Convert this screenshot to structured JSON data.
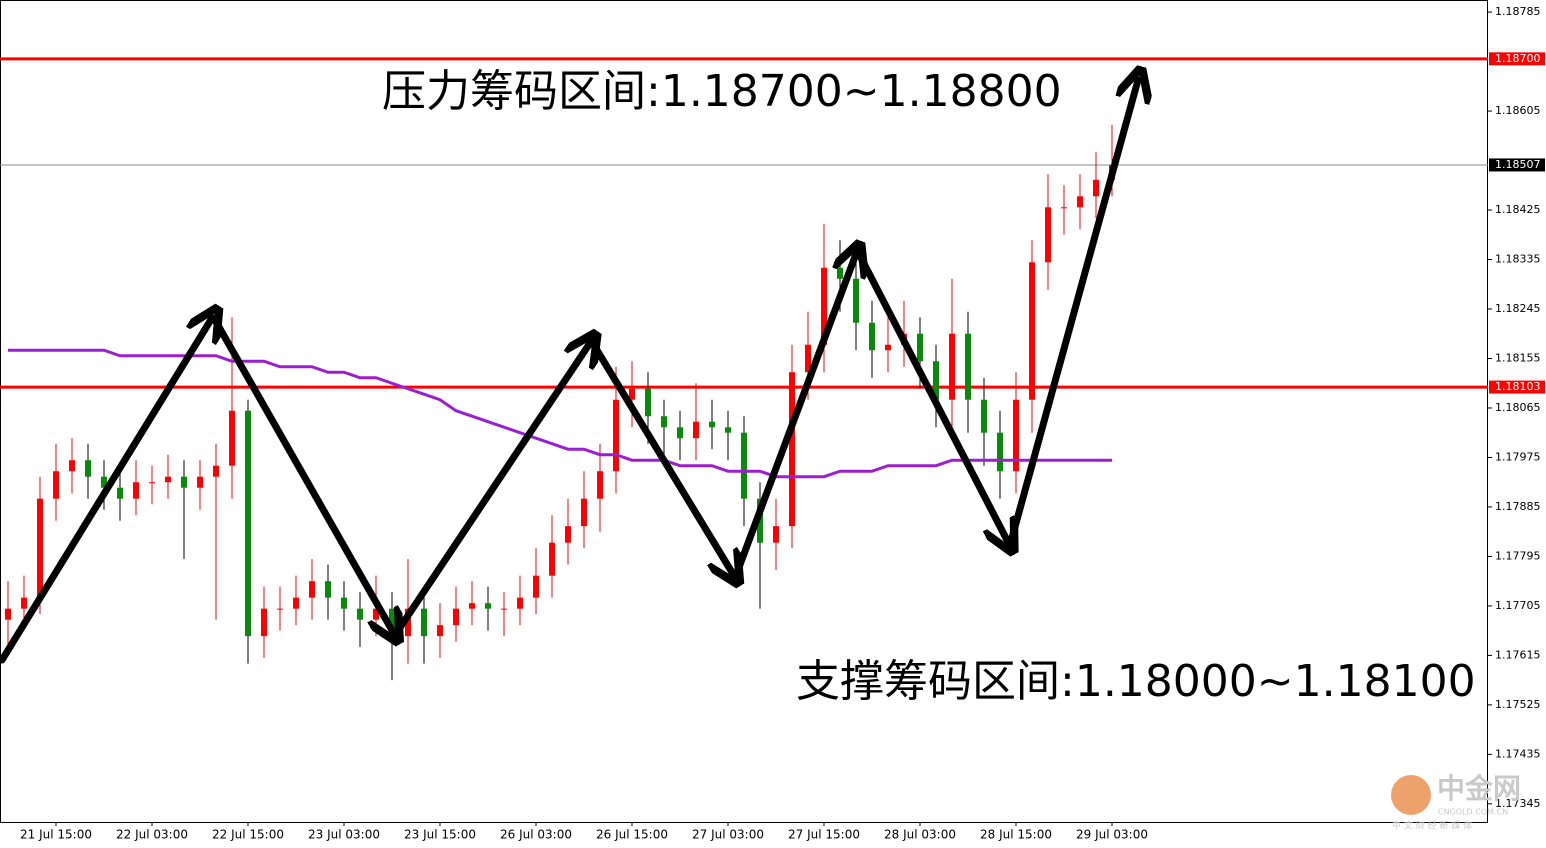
{
  "chart_data": {
    "type": "candlestick",
    "categories": [
      null,
      null,
      null,
      "21 Jul 15:00",
      null,
      null,
      null,
      null,
      null,
      "22 Jul 03:00",
      null,
      null,
      null,
      null,
      null,
      "22 Jul 15:00",
      null,
      null,
      null,
      null,
      null,
      "23 Jul 03:00",
      null,
      null,
      null,
      null,
      null,
      "23 Jul 15:00",
      null,
      null,
      null,
      null,
      null,
      "26 Jul 03:00",
      null,
      null,
      null,
      null,
      null,
      "26 Jul 15:00",
      null,
      null,
      null,
      null,
      null,
      "27 Jul 03:00",
      null,
      null,
      null,
      null,
      null,
      "27 Jul 15:00",
      null,
      null,
      null,
      null,
      null,
      "28 Jul 03:00",
      null,
      null,
      null,
      null,
      null,
      "28 Jul 15:00",
      null,
      null,
      null,
      null,
      null,
      "29 Jul 03:00"
    ],
    "open": [
      1.1768,
      1.177,
      1.1772,
      1.179,
      1.1795,
      1.1797,
      1.1794,
      1.1792,
      1.179,
      1.1793,
      1.1793,
      1.1794,
      1.1792,
      1.1794,
      1.1796,
      1.1806,
      1.1765,
      1.177,
      1.177,
      1.1772,
      1.1775,
      1.1772,
      1.177,
      1.1768,
      1.177,
      1.1765,
      1.177,
      1.1765,
      1.1767,
      1.177,
      1.1771,
      1.177,
      1.177,
      1.1772,
      1.1776,
      1.1782,
      1.1785,
      1.179,
      1.1795,
      1.1808,
      1.181,
      1.1805,
      1.1803,
      1.1801,
      1.1804,
      1.1803,
      1.1802,
      1.179,
      1.1782,
      1.1785,
      1.1813,
      1.1818,
      1.1832,
      1.183,
      1.1822,
      1.1817,
      1.1818,
      1.182,
      1.1815,
      1.1808,
      1.182,
      1.1808,
      1.1802,
      1.1795,
      1.1808,
      1.1833,
      1.1843,
      1.1843,
      1.1845,
      1.1848
    ],
    "high": [
      1.1775,
      1.1776,
      1.1794,
      1.18,
      1.1801,
      1.18,
      1.1797,
      1.1795,
      1.1797,
      1.1796,
      1.1798,
      1.1797,
      1.1797,
      1.18,
      1.1823,
      1.1808,
      1.1774,
      1.1774,
      1.1776,
      1.1779,
      1.1778,
      1.1775,
      1.1773,
      1.1776,
      1.1773,
      1.1779,
      1.1772,
      1.1771,
      1.1774,
      1.1775,
      1.1774,
      1.1773,
      1.1776,
      1.1781,
      1.1787,
      1.179,
      1.1795,
      1.18,
      1.1814,
      1.1815,
      1.1813,
      1.1808,
      1.1806,
      1.1811,
      1.1808,
      1.1806,
      1.1805,
      1.1793,
      1.179,
      1.1818,
      1.1824,
      1.184,
      1.1837,
      1.1833,
      1.1826,
      1.1823,
      1.1826,
      1.1823,
      1.1818,
      1.183,
      1.1824,
      1.1812,
      1.1806,
      1.1813,
      1.1837,
      1.1849,
      1.1847,
      1.1849,
      1.1853,
      1.1858
    ],
    "low": [
      1.1762,
      1.1766,
      1.1769,
      1.1786,
      1.1791,
      1.179,
      1.1788,
      1.1786,
      1.1787,
      1.1789,
      1.179,
      1.1779,
      1.1788,
      1.1768,
      1.179,
      1.176,
      1.1761,
      1.1766,
      1.1767,
      1.1768,
      1.1768,
      1.1766,
      1.1763,
      1.1765,
      1.1757,
      1.176,
      1.176,
      1.1761,
      1.1764,
      1.1767,
      1.1766,
      1.1765,
      1.1767,
      1.1769,
      1.1772,
      1.1778,
      1.1781,
      1.1784,
      1.1791,
      1.1803,
      1.18,
      1.1798,
      1.1797,
      1.1797,
      1.1799,
      1.1797,
      1.1785,
      1.177,
      1.1777,
      1.1781,
      1.1808,
      1.1813,
      1.1824,
      1.1817,
      1.1812,
      1.1813,
      1.1814,
      1.181,
      1.1803,
      1.1803,
      1.1802,
      1.1796,
      1.179,
      1.1791,
      1.1802,
      1.1828,
      1.1838,
      1.1839,
      1.1841,
      1.1845
    ],
    "close": [
      1.177,
      1.1772,
      1.179,
      1.1795,
      1.1797,
      1.1794,
      1.1792,
      1.179,
      1.1793,
      1.1793,
      1.1794,
      1.1792,
      1.1794,
      1.1796,
      1.1806,
      1.1765,
      1.177,
      1.177,
      1.1772,
      1.1775,
      1.1772,
      1.177,
      1.1768,
      1.177,
      1.1765,
      1.177,
      1.1765,
      1.1767,
      1.177,
      1.1771,
      1.177,
      1.177,
      1.1772,
      1.1776,
      1.1782,
      1.1785,
      1.179,
      1.1795,
      1.1808,
      1.181,
      1.1805,
      1.1803,
      1.1801,
      1.1804,
      1.1803,
      1.1802,
      1.179,
      1.1782,
      1.1785,
      1.1813,
      1.1818,
      1.1832,
      1.183,
      1.1822,
      1.1817,
      1.1818,
      1.182,
      1.1815,
      1.1808,
      1.182,
      1.1808,
      1.1802,
      1.1795,
      1.1808,
      1.1833,
      1.1843,
      1.1843,
      1.1845,
      1.1848,
      1.18507
    ],
    "up_color": "#ff0000",
    "down_color": "#0a8a0a",
    "moving_average": {
      "color": "#9a1fd0",
      "values": [
        1.1817,
        1.1817,
        1.1817,
        1.1817,
        1.1817,
        1.1817,
        1.1817,
        1.1816,
        1.1816,
        1.1816,
        1.1816,
        1.1816,
        1.1816,
        1.1816,
        1.1815,
        1.1815,
        1.1815,
        1.1814,
        1.1814,
        1.1814,
        1.1813,
        1.1813,
        1.1812,
        1.1812,
        1.1811,
        1.181,
        1.1809,
        1.1808,
        1.1806,
        1.1805,
        1.1804,
        1.1803,
        1.1802,
        1.1801,
        1.18,
        1.1799,
        1.1799,
        1.1798,
        1.1798,
        1.1797,
        1.1797,
        1.1797,
        1.1796,
        1.1796,
        1.1796,
        1.1795,
        1.1795,
        1.1795,
        1.1794,
        1.1794,
        1.1794,
        1.1794,
        1.1795,
        1.1795,
        1.1795,
        1.1796,
        1.1796,
        1.1796,
        1.1796,
        1.1797,
        1.1797,
        1.1797,
        1.1797,
        1.1797,
        1.1797,
        1.1797,
        1.1797,
        1.1797,
        1.1797,
        1.1797
      ]
    },
    "ylim": [
      1.17312,
      1.18807
    ],
    "yticks": [
      1.18785,
      1.18605,
      1.18425,
      1.18335,
      1.18245,
      1.18155,
      1.18065,
      1.17975,
      1.17885,
      1.17795,
      1.17705,
      1.17615,
      1.17525,
      1.17435,
      1.17345
    ],
    "levels": [
      {
        "value": {
          "value": 1.187,
          "label": "1.18700"
        },
        "color": "#ff0000"
      },
      {
        "value": 1.18103,
        "color": "#ff0000"
      },
      {
        "value": 1.18507,
        "color": "#000000"
      }
    ],
    "annotations": [
      "压力筹码区间:1.18700~1.18800",
      "支撑筹码区间:1.18000~1.18100"
    ]
  },
  "watermark": {
    "name": "中金网",
    "domain": "CNGOLD.COM.CN",
    "slogan": "中 文 财 经 新 媒 体"
  }
}
